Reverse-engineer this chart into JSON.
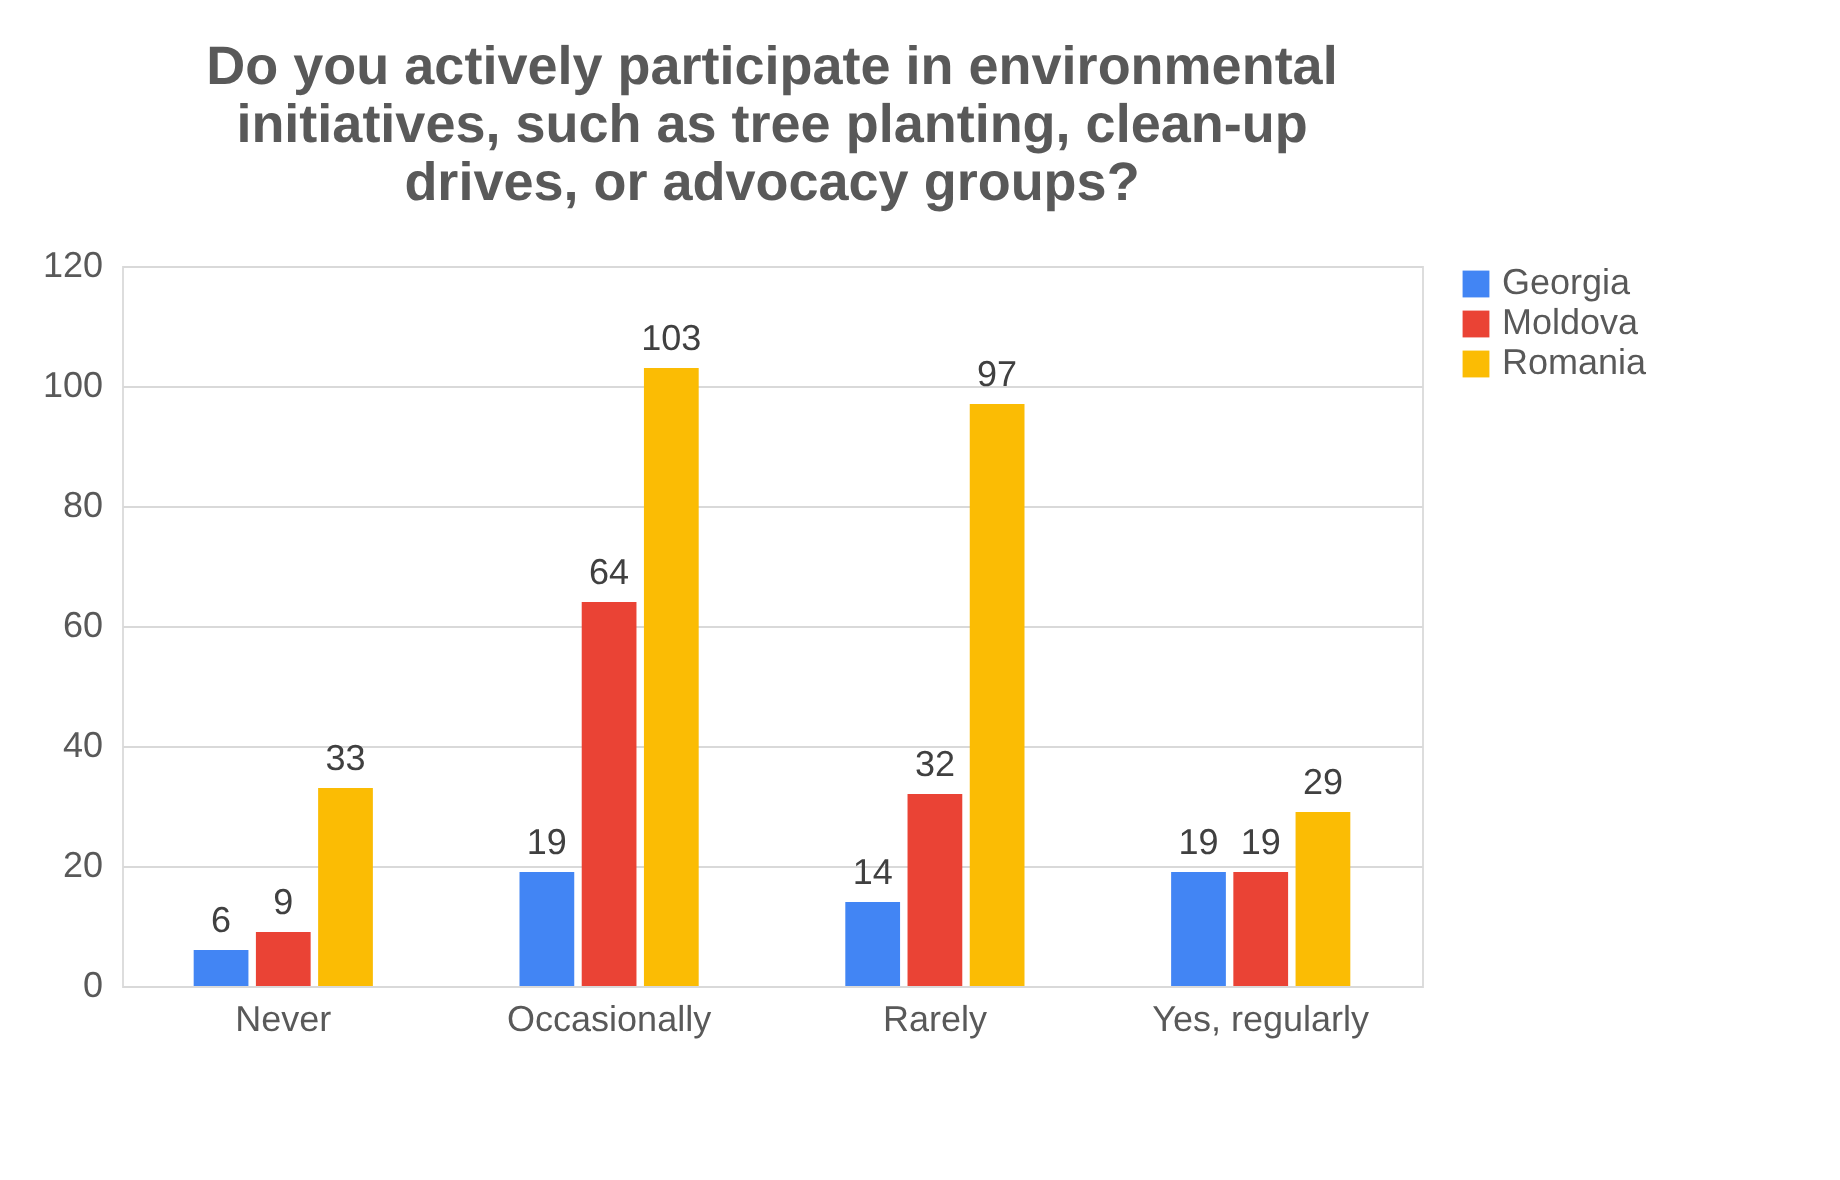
{
  "chart_data": {
    "type": "bar",
    "title": "Do you actively participate in environmental initiatives, such as tree planting, clean-up drives, or advocacy groups?",
    "categories": [
      "Never",
      "Occasionally",
      "Rarely",
      "Yes, regularly"
    ],
    "series": [
      {
        "name": "Georgia",
        "color": "#4285f4",
        "values": [
          6,
          19,
          14,
          19
        ]
      },
      {
        "name": "Moldova",
        "color": "#ea4335",
        "values": [
          9,
          64,
          32,
          19
        ]
      },
      {
        "name": "Romania",
        "color": "#fbbc04",
        "values": [
          33,
          103,
          97,
          29
        ]
      }
    ],
    "ylim": [
      0,
      120
    ],
    "yticks": [
      0,
      20,
      40,
      60,
      80,
      100,
      120
    ],
    "grid": "y",
    "legend": "right",
    "data_labels": true
  }
}
